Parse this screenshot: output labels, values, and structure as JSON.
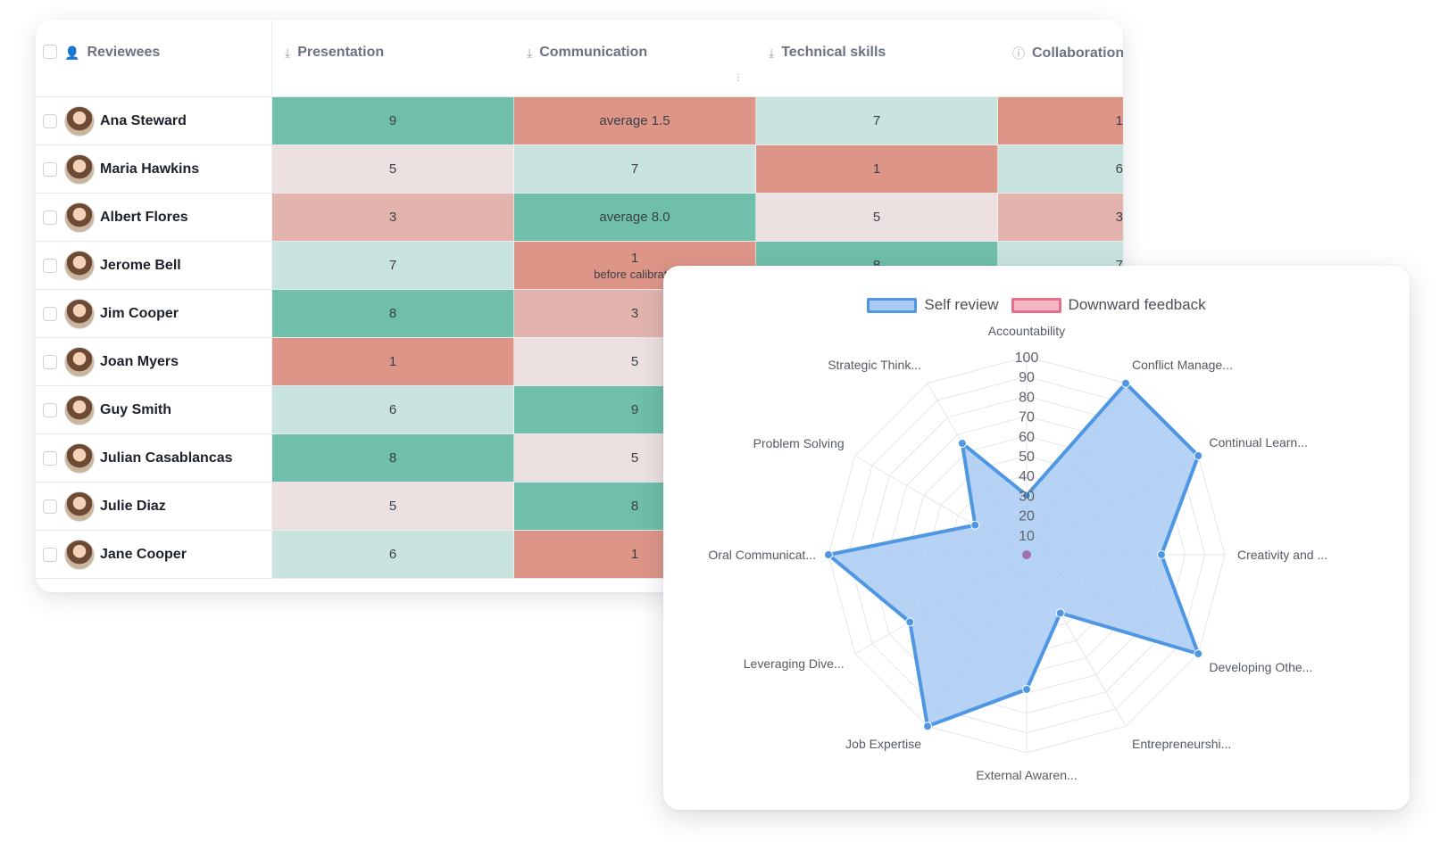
{
  "table": {
    "columns": [
      {
        "label": "Reviewees",
        "icon": "person-icon"
      },
      {
        "label": "Presentation",
        "icon": "download-icon"
      },
      {
        "label": "Communication",
        "icon": "download-icon"
      },
      {
        "label": "Technical skills",
        "icon": "download-icon"
      },
      {
        "label": "Collaboration",
        "icon": "info-icon"
      }
    ],
    "rows": [
      {
        "name": "Ana Steward",
        "cells": [
          {
            "v": "9",
            "c": "#6fbfaa"
          },
          {
            "v": "average 1.5",
            "c": "#dd9587"
          },
          {
            "v": "7",
            "c": "#c9e4df"
          },
          {
            "v": "1",
            "c": "#dd9587"
          }
        ]
      },
      {
        "name": "Maria Hawkins",
        "cells": [
          {
            "v": "5",
            "c": "#ede0e0"
          },
          {
            "v": "7",
            "c": "#c9e4df"
          },
          {
            "v": "1",
            "c": "#dd9587"
          },
          {
            "v": "6",
            "c": "#c9e4df"
          }
        ]
      },
      {
        "name": "Albert Flores",
        "cells": [
          {
            "v": "3",
            "c": "#e3b4ae"
          },
          {
            "v": "average 8.0",
            "c": "#6fbfaa"
          },
          {
            "v": "5",
            "c": "#ede0e0"
          },
          {
            "v": "3",
            "c": "#e3b4ae"
          }
        ]
      },
      {
        "name": "Jerome Bell",
        "cells": [
          {
            "v": "7",
            "c": "#c9e4df"
          },
          {
            "v": "1",
            "sub": "before calibratic",
            "c": "#dd9587"
          },
          {
            "v": "8",
            "c": "#6fbfaa"
          },
          {
            "v": "7",
            "c": "#c9e4df"
          }
        ]
      },
      {
        "name": "Jim Cooper",
        "cells": [
          {
            "v": "8",
            "c": "#6fbfaa"
          },
          {
            "v": "3",
            "c": "#e3b4ae"
          },
          {
            "v": "",
            "c": "#ffffff"
          },
          {
            "v": "",
            "c": "#ffffff"
          }
        ]
      },
      {
        "name": "Joan Myers",
        "cells": [
          {
            "v": "1",
            "c": "#dd9587"
          },
          {
            "v": "5",
            "c": "#ede0e0"
          },
          {
            "v": "",
            "c": "#ffffff"
          },
          {
            "v": "",
            "c": "#ffffff"
          }
        ]
      },
      {
        "name": "Guy Smith",
        "cells": [
          {
            "v": "6",
            "c": "#c9e4df"
          },
          {
            "v": "9",
            "c": "#6fbfaa"
          },
          {
            "v": "",
            "c": "#ffffff"
          },
          {
            "v": "",
            "c": "#ffffff"
          }
        ]
      },
      {
        "name": "Julian Casablancas",
        "cells": [
          {
            "v": "8",
            "c": "#6fbfaa"
          },
          {
            "v": "5",
            "c": "#ede0e0"
          },
          {
            "v": "",
            "c": "#ffffff"
          },
          {
            "v": "",
            "c": "#ffffff"
          }
        ]
      },
      {
        "name": "Julie Diaz",
        "cells": [
          {
            "v": "5",
            "c": "#ede0e0"
          },
          {
            "v": "8",
            "c": "#6fbfaa"
          },
          {
            "v": "",
            "c": "#ffffff"
          },
          {
            "v": "",
            "c": "#ffffff"
          }
        ]
      },
      {
        "name": "Jane Cooper",
        "cells": [
          {
            "v": "6",
            "c": "#c9e4df"
          },
          {
            "v": "1",
            "c": "#dd9587"
          },
          {
            "v": "",
            "c": "#ffffff"
          },
          {
            "v": "",
            "c": "#ffffff"
          }
        ]
      }
    ]
  },
  "chart_data": {
    "type": "radar",
    "legend": [
      {
        "name": "Self review",
        "stroke": "#4f97e2",
        "fill": "#a9cbf3"
      },
      {
        "name": "Downward feedback",
        "stroke": "#e56f8a",
        "fill": "#f6b7c4"
      }
    ],
    "axes": [
      "Accountability",
      "Conflict Manage...",
      "Continual Learn...",
      "Creativity and ...",
      "Developing Othe...",
      "Entrepreneurshi...",
      "External Awaren...",
      "Job Expertise",
      "Leveraging Dive...",
      "Oral Communicat...",
      "Problem Solving",
      "Strategic Think..."
    ],
    "ticks": [
      10,
      20,
      30,
      40,
      50,
      60,
      70,
      80,
      90,
      100
    ],
    "range": [
      0,
      100
    ],
    "series": [
      {
        "name": "Self review",
        "values": [
          30,
          100,
          100,
          68,
          100,
          34,
          68,
          100,
          68,
          100,
          30,
          65
        ]
      }
    ]
  }
}
